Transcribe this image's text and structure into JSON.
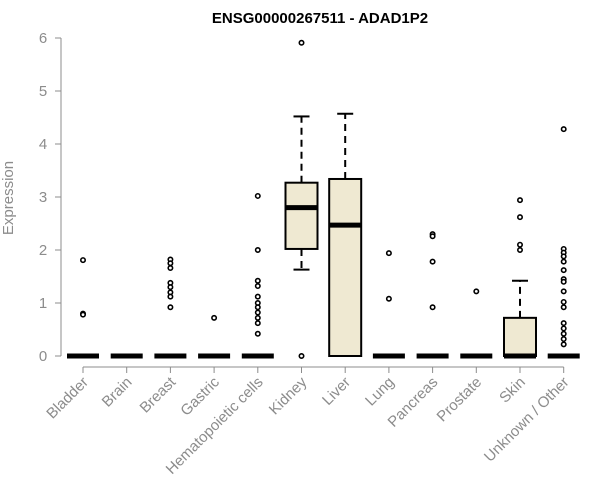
{
  "chart_data": {
    "type": "box",
    "title": "ENSG00000267511 - ADAD1P2",
    "xlabel": "",
    "ylabel": "Expression",
    "ylim": [
      0,
      6
    ],
    "yticks": [
      0,
      1,
      2,
      3,
      4,
      5,
      6
    ],
    "categories": [
      "Bladder",
      "Brain",
      "Breast",
      "Gastric",
      "Hematopoietic cells",
      "Kidney",
      "Liver",
      "Lung",
      "Pancreas",
      "Prostate",
      "Skin",
      "Unknown / Other"
    ],
    "box_fill": "#efe9d2",
    "series": [
      {
        "category": "Bladder",
        "q1": 0,
        "median": 0,
        "q3": 0,
        "whisker_low": 0,
        "whisker_high": 0,
        "outliers": [
          1.81,
          0.8,
          0.78
        ]
      },
      {
        "category": "Brain",
        "q1": 0,
        "median": 0,
        "q3": 0,
        "whisker_low": 0,
        "whisker_high": 0,
        "outliers": []
      },
      {
        "category": "Breast",
        "q1": 0,
        "median": 0,
        "q3": 0,
        "whisker_low": 0,
        "whisker_high": 0,
        "outliers": [
          1.82,
          1.75,
          1.66,
          1.38,
          1.3,
          1.2,
          1.12,
          0.92
        ]
      },
      {
        "category": "Gastric",
        "q1": 0,
        "median": 0,
        "q3": 0,
        "whisker_low": 0,
        "whisker_high": 0,
        "outliers": [
          0.72
        ]
      },
      {
        "category": "Hematopoietic cells",
        "q1": 0,
        "median": 0,
        "q3": 0,
        "whisker_low": 0,
        "whisker_high": 0,
        "outliers": [
          3.02,
          2.0,
          1.42,
          1.32,
          1.12,
          1.0,
          0.92,
          0.82,
          0.72,
          0.62,
          0.42
        ]
      },
      {
        "category": "Kidney",
        "q1": 2.02,
        "median": 2.8,
        "q3": 3.27,
        "whisker_low": 1.63,
        "whisker_high": 4.52,
        "outliers": [
          5.91,
          0.0
        ]
      },
      {
        "category": "Liver",
        "q1": 0,
        "median": 2.47,
        "q3": 3.34,
        "whisker_low": 0,
        "whisker_high": 4.57,
        "outliers": []
      },
      {
        "category": "Lung",
        "q1": 0,
        "median": 0,
        "q3": 0,
        "whisker_low": 0,
        "whisker_high": 0,
        "outliers": [
          1.94,
          1.08
        ]
      },
      {
        "category": "Pancreas",
        "q1": 0,
        "median": 0,
        "q3": 0,
        "whisker_low": 0,
        "whisker_high": 0,
        "outliers": [
          2.3,
          2.26,
          1.78,
          0.92
        ]
      },
      {
        "category": "Prostate",
        "q1": 0,
        "median": 0,
        "q3": 0,
        "whisker_low": 0,
        "whisker_high": 0,
        "outliers": [
          1.22
        ]
      },
      {
        "category": "Skin",
        "q1": 0,
        "median": 0,
        "q3": 0.72,
        "whisker_low": 0,
        "whisker_high": 1.42,
        "outliers": [
          2.94,
          2.62,
          2.1,
          2.0
        ]
      },
      {
        "category": "Unknown / Other",
        "q1": 0,
        "median": 0,
        "q3": 0,
        "whisker_low": 0,
        "whisker_high": 0,
        "outliers": [
          4.28,
          2.02,
          1.95,
          1.88,
          1.78,
          1.62,
          1.45,
          1.4,
          1.22,
          1.02,
          0.92,
          0.62,
          0.52,
          0.42,
          0.32,
          0.22
        ]
      }
    ]
  }
}
